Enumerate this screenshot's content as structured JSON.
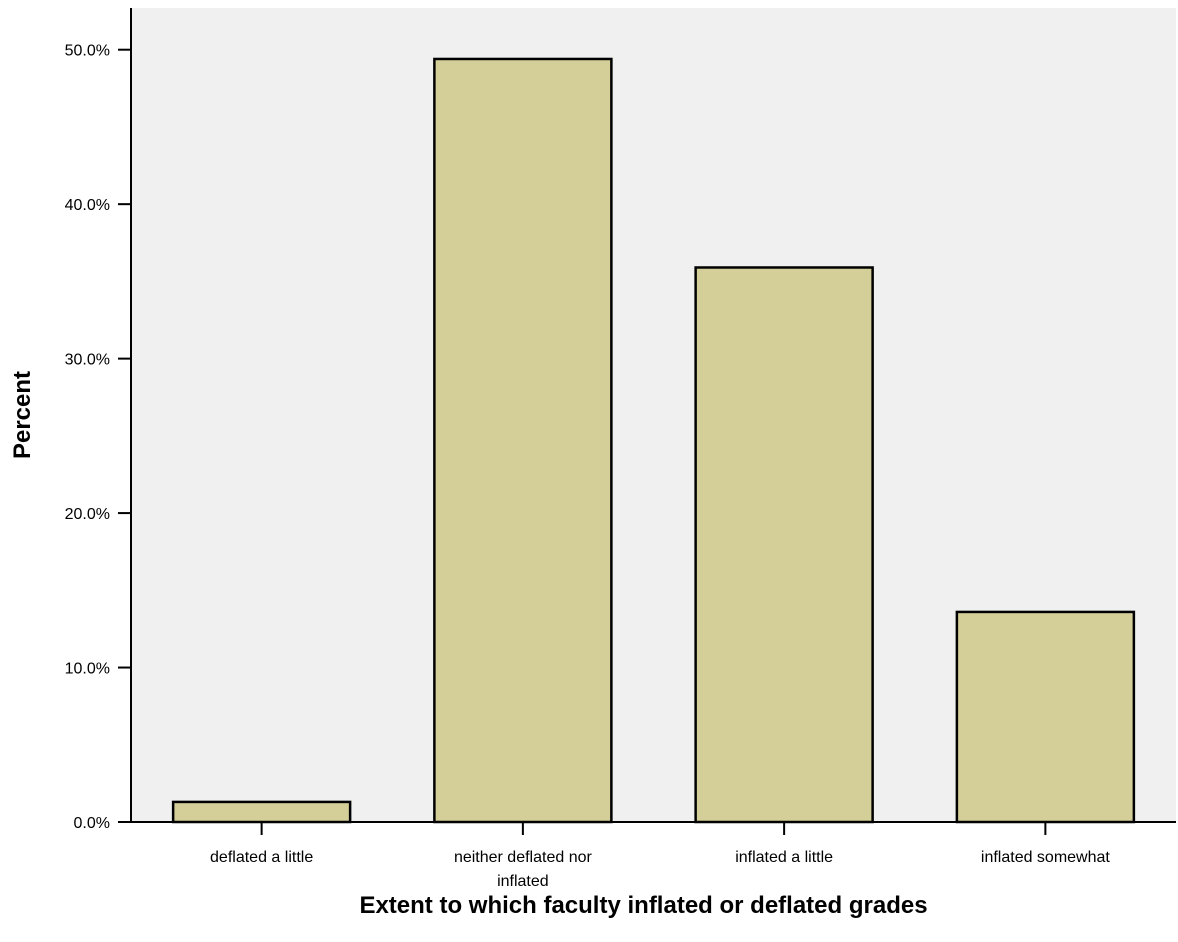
{
  "chart_data": {
    "type": "bar",
    "title": "",
    "xlabel": "Extent to which faculty inflated or deflated grades",
    "ylabel": "Percent",
    "categories": [
      [
        "deflated a little"
      ],
      [
        "neither deflated nor",
        "inflated"
      ],
      [
        "inflated a little"
      ],
      [
        "inflated somewhat"
      ]
    ],
    "values": [
      1.3,
      49.4,
      35.9,
      13.6
    ],
    "yticks": [
      {
        "value": 0,
        "label": "0.0%"
      },
      {
        "value": 10,
        "label": "10.0%"
      },
      {
        "value": 20,
        "label": "20.0%"
      },
      {
        "value": 30,
        "label": "30.0%"
      },
      {
        "value": 40,
        "label": "40.0%"
      },
      {
        "value": 50,
        "label": "50.0%"
      }
    ],
    "ylim": [
      0,
      52.7
    ],
    "grid": false,
    "legend": "none",
    "colors": {
      "plot_background": "#f0f0f0",
      "bar_fill": "#d4ce98",
      "bar_stroke": "#000000",
      "axis": "#000000"
    }
  }
}
